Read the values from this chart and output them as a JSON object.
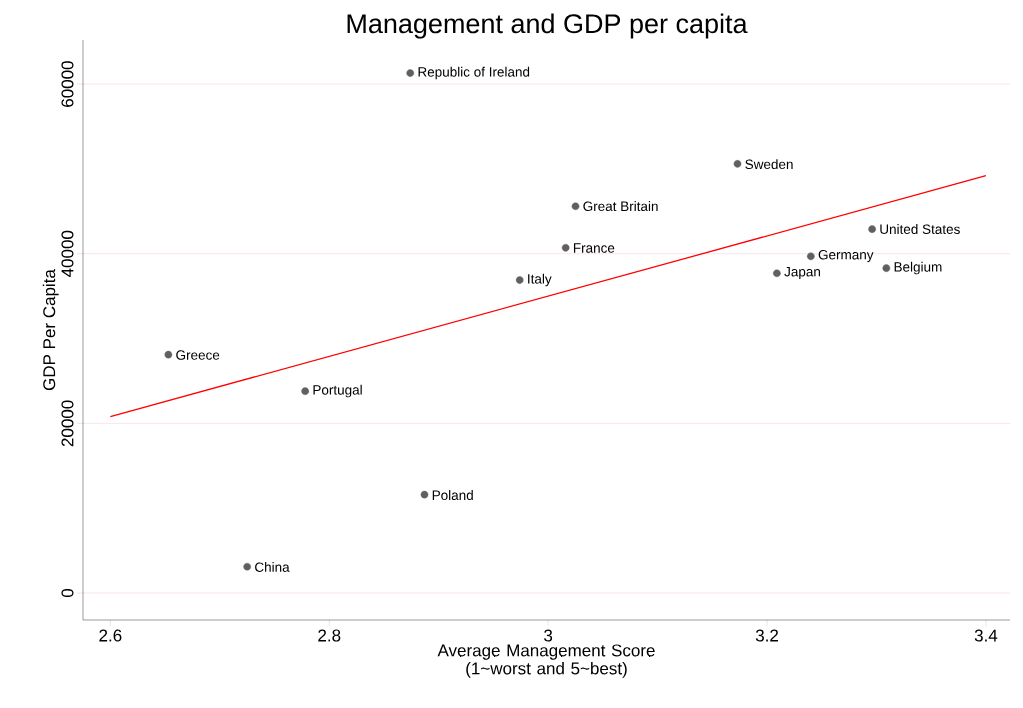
{
  "chart_data": {
    "type": "scatter",
    "title": "Management and GDP per capita",
    "xlabel": "Average Management Score (1~worst and 5~best)",
    "ylabel": "GDP Per Capita",
    "xlim": [
      2.575,
      3.422
    ],
    "ylim": [
      -3180,
      65200
    ],
    "xticks": [
      2.6,
      2.8,
      3,
      3.2,
      3.4
    ],
    "yticks": [
      0,
      20000,
      40000,
      60000
    ],
    "grid": "y",
    "series": [
      {
        "color": "#606060",
        "marker": "circle",
        "x": [
          2.874,
          3.173,
          3.025,
          3.296,
          3.016,
          3.24,
          3.309,
          3.209,
          2.974,
          2.653,
          2.778,
          2.887,
          2.725
        ],
        "values": [
          61300,
          50600,
          45600,
          42900,
          40700,
          39700,
          38300,
          37700,
          36900,
          28100,
          23800,
          11600,
          3100
        ]
      },
      {
        "type": "line",
        "color": "#ff0000",
        "x": [
          2.6,
          3.4
        ],
        "values": [
          20800,
          49200
        ]
      }
    ],
    "annotations": [
      {
        "text": "Republic of Ireland",
        "x": 2.874,
        "y": 61300
      },
      {
        "text": "Sweden",
        "x": 3.173,
        "y": 50570
      },
      {
        "text": "Great Britain",
        "x": 3.025,
        "y": 45620
      },
      {
        "text": "United States",
        "x": 3.296,
        "y": 42910
      },
      {
        "text": "France",
        "x": 3.016,
        "y": 40670
      },
      {
        "text": "Germany",
        "x": 3.24,
        "y": 39730
      },
      {
        "text": "Belgium",
        "x": 3.309,
        "y": 38310
      },
      {
        "text": "Japan",
        "x": 3.209,
        "y": 37720
      },
      {
        "text": "Italy",
        "x": 2.974,
        "y": 36900
      },
      {
        "text": "Greece",
        "x": 2.653,
        "y": 28060
      },
      {
        "text": "Portugal",
        "x": 2.778,
        "y": 23810
      },
      {
        "text": "Poland",
        "x": 2.887,
        "y": 11550
      },
      {
        "text": "China",
        "x": 2.725,
        "y": 3070
      }
    ]
  }
}
